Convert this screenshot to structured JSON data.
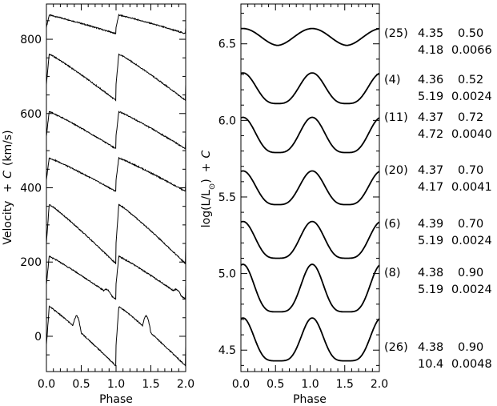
{
  "chart_data": [
    {
      "type": "line",
      "title": "",
      "xlabel": "Phase",
      "ylabel_parts": [
        "Velocity",
        "+",
        "C",
        "(km/s)"
      ],
      "xlim": [
        0.0,
        2.0
      ],
      "ylim": [
        -95,
        895
      ],
      "x_ticks": [
        "0.0",
        "0.5",
        "1.0",
        "1.5",
        "2.0"
      ],
      "y_ticks": [
        {
          "value": 0,
          "label": "0"
        },
        {
          "value": 200,
          "label": "200"
        },
        {
          "value": 400,
          "label": "400"
        },
        {
          "value": 600,
          "label": "600"
        },
        {
          "value": 800,
          "label": "800"
        }
      ],
      "series": [
        {
          "shape": "v",
          "base": 815,
          "amp": 50,
          "ripple": 0
        },
        {
          "shape": "v",
          "base": 635,
          "amp": 125,
          "ripple": 0
        },
        {
          "shape": "v",
          "base": 505,
          "amp": 100,
          "ripple": 0
        },
        {
          "shape": "v",
          "base": 390,
          "amp": 90,
          "ripple": 0
        },
        {
          "shape": "v",
          "base": 195,
          "amp": 160,
          "ripple": 0
        },
        {
          "shape": "v",
          "base": 100,
          "amp": 115,
          "ripple": 1
        },
        {
          "shape": "v",
          "base": -80,
          "amp": 160,
          "ripple": 2
        }
      ]
    },
    {
      "type": "line",
      "title": "",
      "xlabel": "Phase",
      "ylabel_parts": [
        "log(L/L",
        "⊙",
        ")",
        "+",
        "C"
      ],
      "xlim": [
        0.0,
        2.0
      ],
      "ylim": [
        4.36,
        6.76
      ],
      "x_ticks": [
        "0.0",
        "0.5",
        "1.0",
        "1.5",
        "2.0"
      ],
      "y_ticks": [
        {
          "value": 4.5,
          "label": "4.5"
        },
        {
          "value": 5.0,
          "label": "5.0"
        },
        {
          "value": 5.5,
          "label": "5.5"
        },
        {
          "value": 6.0,
          "label": "6.0"
        },
        {
          "value": 6.5,
          "label": "6.5"
        }
      ],
      "series": [
        {
          "shape": "l",
          "min": 6.49,
          "max": 6.6,
          "sharp": 0.9
        },
        {
          "shape": "l",
          "min": 6.11,
          "max": 6.31,
          "sharp": 1.6
        },
        {
          "shape": "l",
          "min": 5.79,
          "max": 6.02,
          "sharp": 1.7
        },
        {
          "shape": "l",
          "min": 5.45,
          "max": 5.67,
          "sharp": 1.7
        },
        {
          "shape": "l",
          "min": 5.1,
          "max": 5.34,
          "sharp": 1.8
        },
        {
          "shape": "l",
          "min": 4.75,
          "max": 5.06,
          "sharp": 2.1
        },
        {
          "shape": "l",
          "min": 4.43,
          "max": 4.71,
          "sharp": 2.2
        }
      ]
    }
  ],
  "annotations": [
    {
      "id": "(25)",
      "a": "4.35",
      "b": "0.50",
      "c": "4.18",
      "d": "0.0066"
    },
    {
      "id": "(4)",
      "a": "4.36",
      "b": "0.52",
      "c": "5.19",
      "d": "0.0024"
    },
    {
      "id": "(11)",
      "a": "4.37",
      "b": "0.72",
      "c": "4.72",
      "d": "0.0040"
    },
    {
      "id": "(20)",
      "a": "4.37",
      "b": "0.70",
      "c": "4.17",
      "d": "0.0041"
    },
    {
      "id": "(6)",
      "a": "4.39",
      "b": "0.70",
      "c": "5.19",
      "d": "0.0024"
    },
    {
      "id": "(8)",
      "a": "4.38",
      "b": "0.90",
      "c": "5.19",
      "d": "0.0024"
    },
    {
      "id": "(26)",
      "a": "4.38",
      "b": "0.90",
      "c": "10.4",
      "d": "0.0048"
    }
  ]
}
